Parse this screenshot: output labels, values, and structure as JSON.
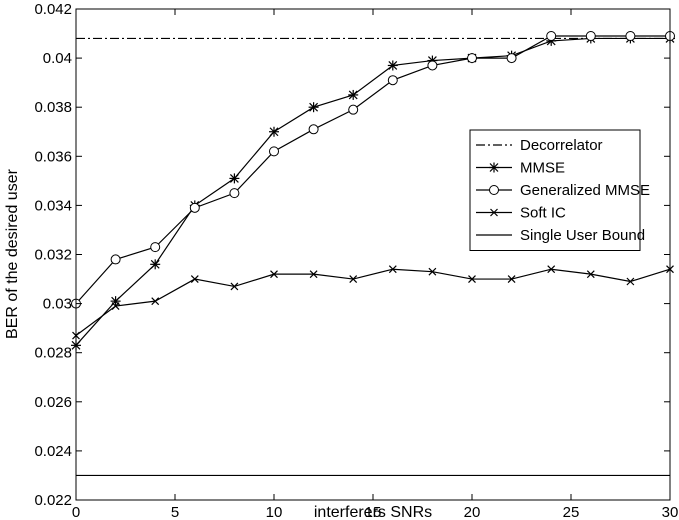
{
  "chart_data": {
    "type": "line",
    "xlabel": "interferers SNRs",
    "ylabel": "BER of the desired user",
    "xlim": [
      0,
      30
    ],
    "ylim": [
      0.022,
      0.042
    ],
    "x_ticks": [
      0,
      5,
      10,
      15,
      20,
      25,
      30
    ],
    "x_tick_labels": [
      "0",
      "5",
      "10",
      "15",
      "20",
      "25",
      "30"
    ],
    "y_ticks": [
      0.022,
      0.024,
      0.026,
      0.028,
      0.03,
      0.032,
      0.034,
      0.036,
      0.038,
      0.04,
      0.042
    ],
    "y_tick_labels": [
      "0.022",
      "0.024",
      "0.026",
      "0.028",
      "0.03",
      "0.032",
      "0.034",
      "0.036",
      "0.038",
      "0.04",
      "0.042"
    ],
    "grid": false,
    "legend_position": "right",
    "x": [
      0,
      2,
      4,
      6,
      8,
      10,
      12,
      14,
      16,
      18,
      20,
      22,
      24,
      26,
      28,
      30
    ],
    "series": [
      {
        "name": "Decorrelator",
        "style": "dash-dot",
        "marker": "none",
        "values": [
          0.0408,
          0.0408,
          0.0408,
          0.0408,
          0.0408,
          0.0408,
          0.0408,
          0.0408,
          0.0408,
          0.0408,
          0.0408,
          0.0408,
          0.0408,
          0.0408,
          0.0408,
          0.0408
        ]
      },
      {
        "name": "MMSE",
        "style": "solid",
        "marker": "star",
        "values": [
          0.0283,
          0.0301,
          0.0316,
          0.034,
          0.0351,
          0.037,
          0.038,
          0.0385,
          0.0397,
          0.0399,
          0.04,
          0.0401,
          0.0407,
          0.0408,
          0.0408,
          0.0408
        ]
      },
      {
        "name": "Generalized MMSE",
        "style": "solid",
        "marker": "circle",
        "values": [
          0.03,
          0.0318,
          0.0323,
          0.0339,
          0.0345,
          0.0362,
          0.0371,
          0.0379,
          0.0391,
          0.0397,
          0.04,
          0.04,
          0.0409,
          0.0409,
          0.0409,
          0.0409
        ]
      },
      {
        "name": "Soft IC",
        "style": "solid",
        "marker": "x",
        "values": [
          0.0287,
          0.0299,
          0.0301,
          0.031,
          0.0307,
          0.0312,
          0.0312,
          0.031,
          0.0314,
          0.0313,
          0.031,
          0.031,
          0.0314,
          0.0312,
          0.0309,
          0.0314
        ]
      },
      {
        "name": "Single User Bound",
        "style": "solid",
        "marker": "none",
        "values": [
          0.023,
          0.023,
          0.023,
          0.023,
          0.023,
          0.023,
          0.023,
          0.023,
          0.023,
          0.023,
          0.023,
          0.023,
          0.023,
          0.023,
          0.023,
          0.023
        ]
      }
    ]
  }
}
